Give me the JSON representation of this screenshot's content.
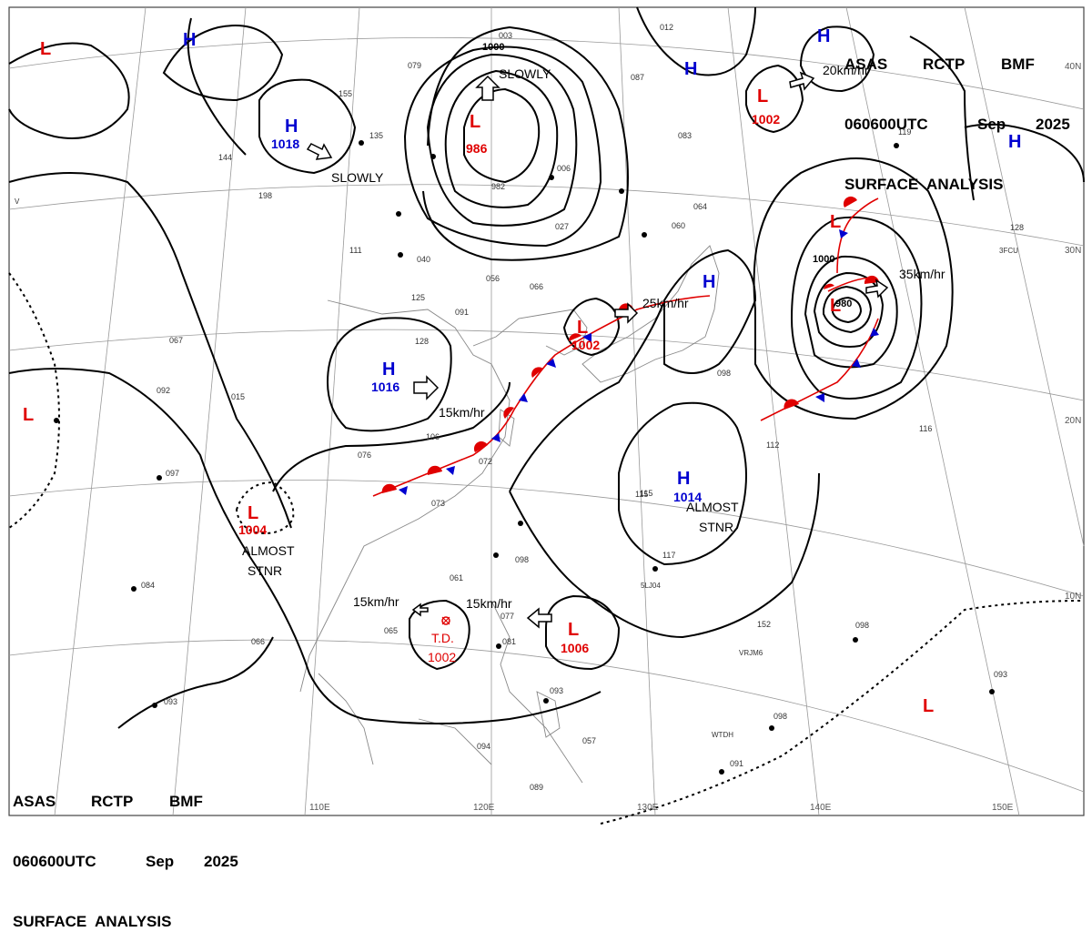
{
  "header": {
    "agency_words": [
      "ASAS",
      "RCTP",
      "BMF"
    ],
    "date_words": [
      "060600UTC",
      "Sep",
      "2025"
    ],
    "product": "SURFACE  ANALYSIS"
  },
  "lat_labels": [
    "30N",
    "20N",
    "10N"
  ],
  "lon_labels": [
    "110E",
    "120E",
    "130E",
    "140E",
    "150E"
  ],
  "pressure_centers": [
    {
      "type": "L",
      "value": "986",
      "color": "#e00000"
    },
    {
      "type": "L",
      "value": "1002",
      "color": "#e00000"
    },
    {
      "type": "L",
      "value": "1002",
      "color": "#e00000"
    },
    {
      "type": "L",
      "value": "1004",
      "color": "#e00000"
    },
    {
      "type": "L",
      "value": "1006",
      "color": "#e00000"
    },
    {
      "type": "L",
      "value": "980",
      "color": "#e00000"
    },
    {
      "type": "L",
      "value": "",
      "color": "#e00000"
    },
    {
      "type": "H",
      "value": "1018",
      "color": "#0000d0"
    },
    {
      "type": "H",
      "value": "1016",
      "color": "#0000d0"
    },
    {
      "type": "H",
      "value": "1014",
      "color": "#0000d0"
    },
    {
      "type": "H",
      "value": "",
      "color": "#0000d0"
    }
  ],
  "tropical_depression": {
    "label": "T.D.",
    "value": "1002"
  },
  "isobar_labels": [
    "1000",
    "1000"
  ],
  "movement_labels": [
    "SLOWLY",
    "SLOWLY",
    "15km/hr",
    "25km/hr",
    "20km/hr",
    "35km/hr",
    "15km/hr",
    "15km/hr"
  ],
  "stationary_labels": [
    {
      "line1": "ALMOST",
      "line2": "STNR"
    },
    {
      "line1": "ALMOST",
      "line2": "STNR"
    }
  ],
  "station_codes": [
    "V",
    "3FCU",
    "VRJM6",
    "WTDH",
    "5LJ04"
  ],
  "station_values": [
    "079",
    "003",
    "155",
    "135",
    "198",
    "111",
    "144",
    "040",
    "066",
    "125",
    "091",
    "128",
    "092",
    "067",
    "015",
    "076",
    "106",
    "073",
    "072",
    "061",
    "077",
    "081",
    "098",
    "093",
    "115",
    "089",
    "057",
    "094",
    "065",
    "066",
    "084",
    "093",
    "097",
    "012",
    "087",
    "064",
    "060",
    "083",
    "119",
    "128",
    "098",
    "116",
    "112",
    "115",
    "117",
    "098",
    "093",
    "091",
    "098",
    "027",
    "982",
    "006",
    "056",
    "152"
  ],
  "colors": {
    "low": "#e00000",
    "high": "#0000d0",
    "warm_front": "#e00000",
    "cold_front": "#0000d0"
  }
}
